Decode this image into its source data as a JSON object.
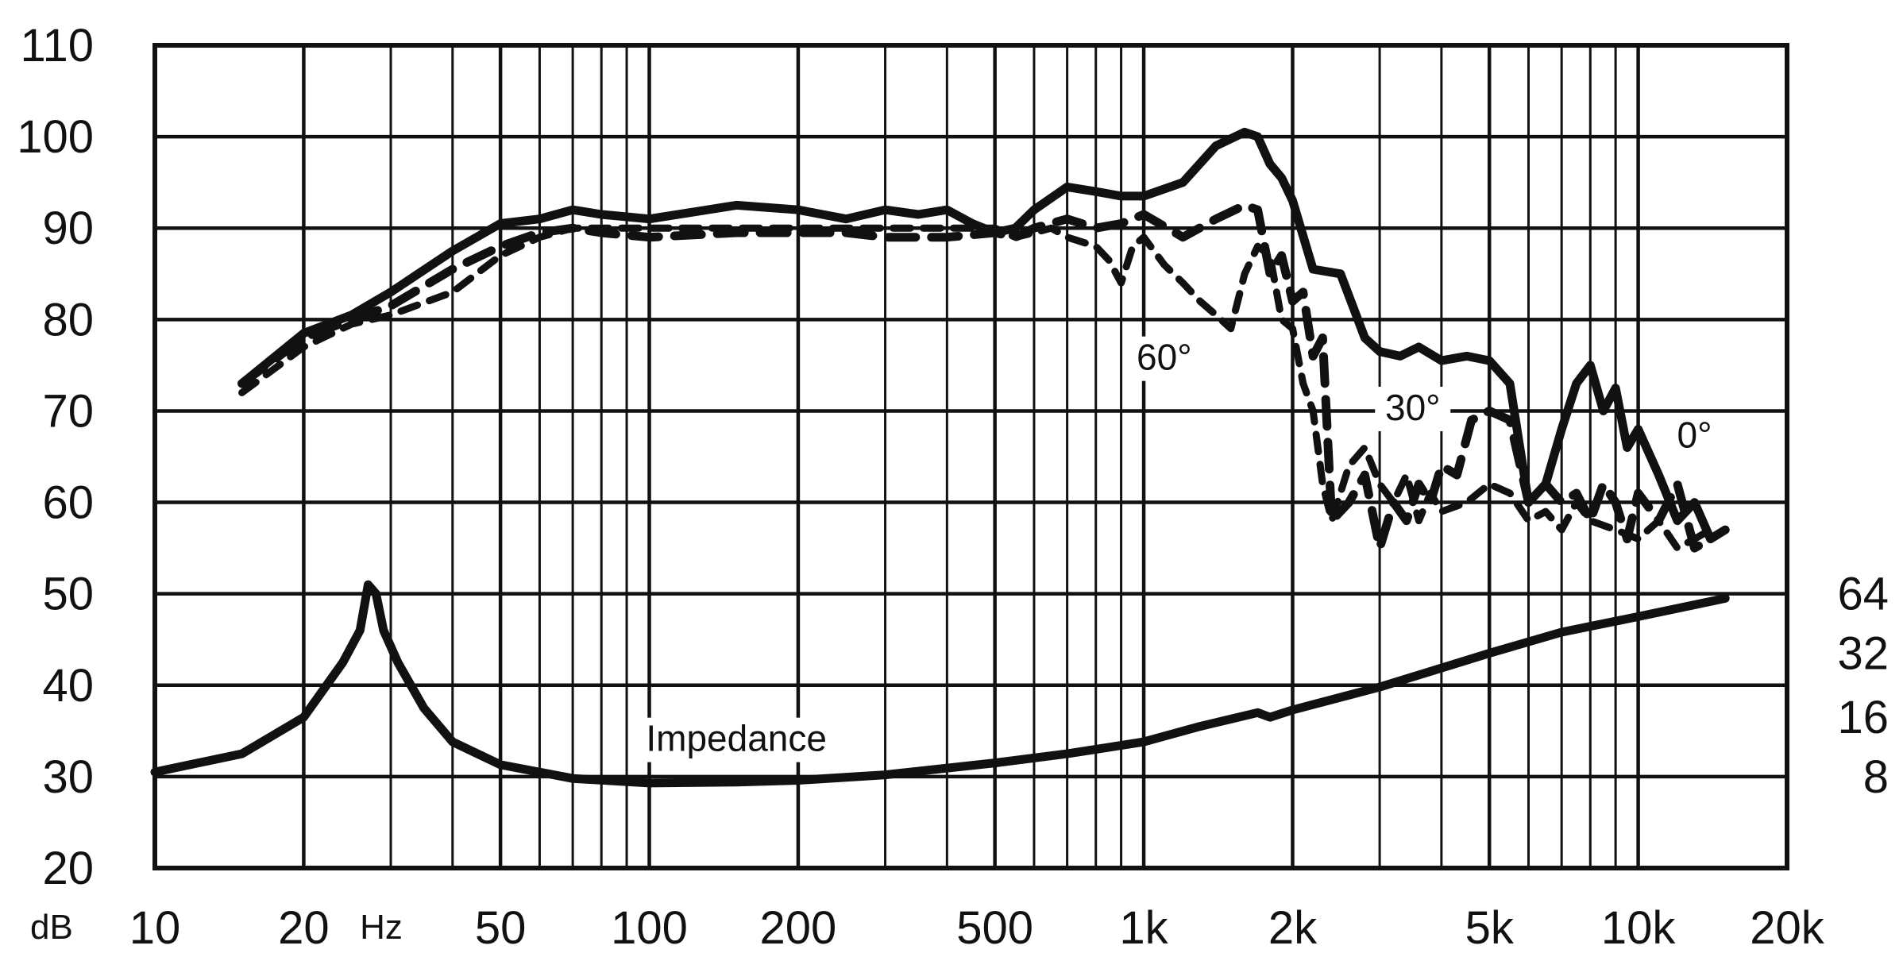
{
  "chart_data": {
    "type": "line",
    "x_scale": "log",
    "xlim": [
      10,
      20000
    ],
    "ylim": [
      20,
      110
    ],
    "grid": true,
    "x_unit_label": "Hz",
    "y_unit_label": "dB",
    "x_tick_labels": [
      {
        "value": 10,
        "label": "10"
      },
      {
        "value": 20,
        "label": "20"
      },
      {
        "value": 50,
        "label": "50"
      },
      {
        "value": 100,
        "label": "100"
      },
      {
        "value": 200,
        "label": "200"
      },
      {
        "value": 500,
        "label": "500"
      },
      {
        "value": 1000,
        "label": "1k"
      },
      {
        "value": 2000,
        "label": "2k"
      },
      {
        "value": 5000,
        "label": "5k"
      },
      {
        "value": 10000,
        "label": "10k"
      },
      {
        "value": 20000,
        "label": "20k"
      }
    ],
    "y_tick_labels": [
      {
        "value": 20,
        "label": "20"
      },
      {
        "value": 30,
        "label": "30"
      },
      {
        "value": 40,
        "label": "40"
      },
      {
        "value": 50,
        "label": "50"
      },
      {
        "value": 60,
        "label": "60"
      },
      {
        "value": 70,
        "label": "70"
      },
      {
        "value": 80,
        "label": "80"
      },
      {
        "value": 90,
        "label": "90"
      },
      {
        "value": 100,
        "label": "100"
      },
      {
        "value": 110,
        "label": "110"
      }
    ],
    "impedance_axis_labels": [
      {
        "value": 50,
        "label": "64"
      },
      {
        "value": 43.5,
        "label": "32"
      },
      {
        "value": 36.5,
        "label": "16"
      },
      {
        "value": 30,
        "label": "8"
      }
    ],
    "series": [
      {
        "name": "0°",
        "style": "solid",
        "label_at": [
          13000,
          66
        ],
        "x": [
          15,
          20,
          25,
          30,
          40,
          50,
          60,
          70,
          80,
          100,
          150,
          200,
          250,
          300,
          350,
          400,
          450,
          500,
          550,
          600,
          700,
          800,
          900,
          1000,
          1200,
          1400,
          1600,
          1700,
          1800,
          1900,
          2000,
          2200,
          2500,
          2800,
          3000,
          3300,
          3600,
          4000,
          4500,
          5000,
          5500,
          6000,
          6500,
          7000,
          7500,
          8000,
          8500,
          9000,
          9500,
          10000,
          11000,
          12000,
          13000,
          14000,
          15000
        ],
        "y": [
          73,
          78.5,
          80.5,
          83,
          87.5,
          90.5,
          91,
          92,
          91.5,
          91,
          92.5,
          92,
          91,
          92,
          91.5,
          92,
          90.5,
          89.5,
          90,
          92,
          94.5,
          94,
          93.5,
          93.5,
          95,
          99,
          100.5,
          100,
          97,
          95.5,
          93,
          85.5,
          85,
          78,
          76.5,
          76,
          77,
          75.5,
          76,
          75.5,
          73,
          60,
          62,
          68,
          73,
          75,
          70,
          72.5,
          66,
          68,
          63,
          58,
          60,
          56,
          57
        ]
      },
      {
        "name": "30°",
        "style": "dashed",
        "label_at": [
          3500,
          69
        ],
        "x": [
          15,
          20,
          25,
          30,
          40,
          50,
          60,
          70,
          80,
          100,
          150,
          200,
          250,
          300,
          400,
          500,
          550,
          600,
          700,
          800,
          900,
          1000,
          1200,
          1400,
          1600,
          1700,
          1800,
          1900,
          2000,
          2100,
          2200,
          2300,
          2400,
          2600,
          2800,
          3000,
          3200,
          3400,
          3600,
          3800,
          4000,
          4300,
          4600,
          5000,
          5500,
          6000,
          6500,
          7000,
          7500,
          8000,
          8500,
          9000,
          9500,
          10000,
          11000,
          12000,
          13000,
          14000
        ],
        "y": [
          73,
          78,
          80,
          81.5,
          85.5,
          88,
          89.5,
          90,
          89.5,
          89,
          89.5,
          89.5,
          89.5,
          89,
          89,
          89.5,
          89,
          90,
          91,
          90,
          90.5,
          91.5,
          89,
          91,
          92.5,
          92,
          85,
          87,
          82,
          83,
          76,
          78,
          58,
          60,
          63,
          55,
          60,
          58,
          62,
          60,
          64,
          63,
          69,
          70,
          69,
          60,
          62,
          60,
          61,
          58,
          62,
          60,
          56,
          61,
          58,
          62,
          55,
          56
        ]
      },
      {
        "name": "60°",
        "style": "solid-thin",
        "label_at": [
          1100,
          74.5
        ],
        "x": [
          15,
          20,
          25,
          30,
          40,
          50,
          60,
          70,
          80,
          100,
          150,
          200,
          250,
          300,
          400,
          500,
          550,
          600,
          650,
          700,
          800,
          850,
          900,
          950,
          1000,
          1100,
          1200,
          1300,
          1400,
          1500,
          1600,
          1700,
          1800,
          1900,
          2000,
          2100,
          2200,
          2300,
          2400,
          2600,
          2800,
          3000,
          3200,
          3400,
          3600,
          3800,
          4000,
          4500,
          5000,
          5500,
          6000,
          6500,
          7000,
          7500,
          8000,
          9000,
          10000,
          11000,
          12000,
          13000,
          14000
        ],
        "y": [
          72,
          77,
          79.5,
          80.5,
          83,
          87,
          89,
          90,
          90,
          90,
          90,
          90,
          90,
          90,
          90,
          90,
          89,
          89.5,
          90,
          89,
          88,
          86.5,
          84,
          88,
          89,
          86,
          84,
          82,
          80.5,
          79,
          85,
          88,
          87,
          80,
          79,
          73,
          70,
          62,
          58,
          64,
          66,
          62,
          60,
          63,
          58,
          61,
          59,
          60,
          62,
          61,
          58,
          59,
          57,
          60,
          58,
          57,
          56,
          58,
          55,
          56,
          57
        ]
      },
      {
        "name": "Impedance",
        "style": "solid",
        "label_at": [
          150,
          32.8
        ],
        "x": [
          10,
          15,
          20,
          24,
          26,
          27,
          28,
          29,
          31,
          35,
          40,
          50,
          70,
          100,
          150,
          200,
          300,
          500,
          700,
          1000,
          1300,
          1500,
          1700,
          1800,
          2000,
          3000,
          5000,
          7000,
          10000,
          15000
        ],
        "y": [
          30.5,
          32.5,
          36.5,
          42.5,
          46,
          51,
          50,
          46,
          42.5,
          37.5,
          33.8,
          31.3,
          29.8,
          29.3,
          29.4,
          29.6,
          30.2,
          31.5,
          32.5,
          33.8,
          35.5,
          36.3,
          37,
          36.5,
          37.3,
          39.8,
          43.5,
          45.8,
          47.5,
          49.5
        ]
      }
    ]
  }
}
